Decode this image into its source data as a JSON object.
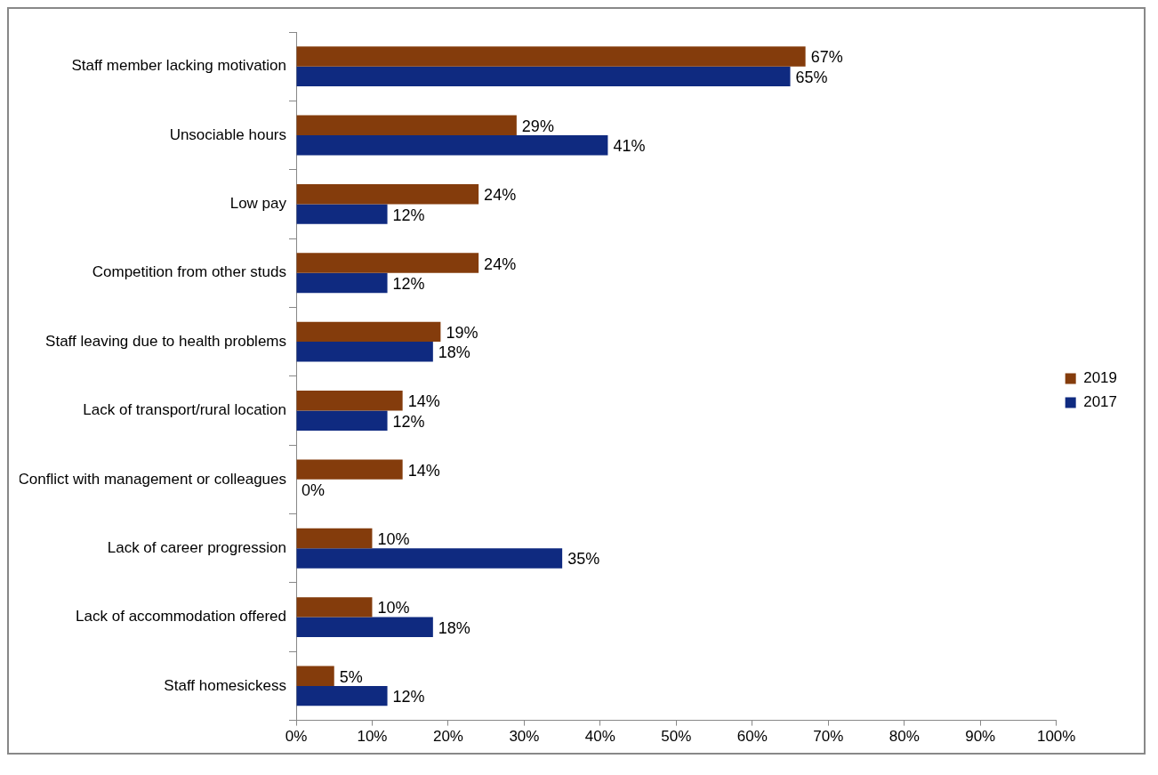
{
  "chart_data": {
    "type": "bar",
    "orientation": "horizontal",
    "categories": [
      "Staff member lacking motivation",
      "Unsociable hours",
      "Low pay",
      "Competition from other studs",
      "Staff leaving due to health problems",
      "Lack of transport/rural location",
      "Conflict with management or colleagues",
      "Lack of career progression",
      "Lack of accommodation offered",
      "Staff homesickess"
    ],
    "series": [
      {
        "name": "2019",
        "color": "#843c0c",
        "values": [
          67,
          29,
          24,
          24,
          19,
          14,
          14,
          10,
          10,
          5
        ],
        "value_labels": [
          "67%",
          "29%",
          "24%",
          "24%",
          "19%",
          "14%",
          "14%",
          "10%",
          "10%",
          "5%"
        ]
      },
      {
        "name": "2017",
        "color": "#0f2a80",
        "values": [
          65,
          41,
          12,
          12,
          18,
          12,
          0,
          35,
          18,
          12
        ],
        "value_labels": [
          "65%",
          "41%",
          "12%",
          "12%",
          "18%",
          "12%",
          "0%",
          "35%",
          "18%",
          "12%"
        ]
      }
    ],
    "xlim": [
      0,
      100
    ],
    "xticks": [
      {
        "value": 0,
        "label": "0%"
      },
      {
        "value": 10,
        "label": "10%"
      },
      {
        "value": 20,
        "label": "20%"
      },
      {
        "value": 30,
        "label": "30%"
      },
      {
        "value": 40,
        "label": "40%"
      },
      {
        "value": 50,
        "label": "50%"
      },
      {
        "value": 60,
        "label": "60%"
      },
      {
        "value": 70,
        "label": "70%"
      },
      {
        "value": 80,
        "label": "80%"
      },
      {
        "value": 90,
        "label": "90%"
      },
      {
        "value": 100,
        "label": "100%"
      }
    ],
    "legend": "right",
    "grid": false
  }
}
